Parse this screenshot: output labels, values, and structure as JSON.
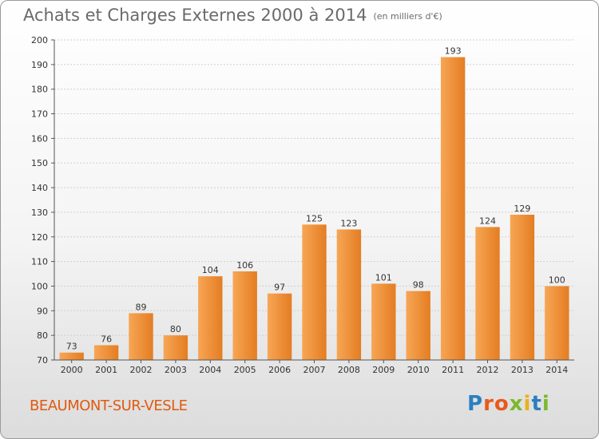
{
  "header": {
    "title": "Achats et Charges Externes 2000 à 2014",
    "unit": "(en milliers d'€)"
  },
  "footer": {
    "commune": "BEAUMONT-SUR-VESLE",
    "logo": "Proxiti"
  },
  "colors": {
    "bar_light": "#f7a655",
    "bar_dark": "#e47d22",
    "title": "#6a6a6a",
    "commune": "#e05a10"
  },
  "chart_data": {
    "type": "bar",
    "title": "Achats et Charges Externes 2000 à 2014",
    "subtitle": "(en milliers d'€)",
    "xlabel": "",
    "ylabel": "",
    "categories": [
      "2000",
      "2001",
      "2002",
      "2003",
      "2004",
      "2005",
      "2006",
      "2007",
      "2008",
      "2009",
      "2010",
      "2011",
      "2012",
      "2013",
      "2014"
    ],
    "values": [
      73,
      76,
      89,
      80,
      104,
      106,
      97,
      125,
      123,
      101,
      98,
      193,
      124,
      129,
      100
    ],
    "ylim": [
      70,
      200
    ],
    "yticks": [
      70,
      80,
      90,
      100,
      110,
      120,
      130,
      140,
      150,
      160,
      170,
      180,
      190,
      200
    ],
    "grid": true,
    "legend": "none"
  }
}
